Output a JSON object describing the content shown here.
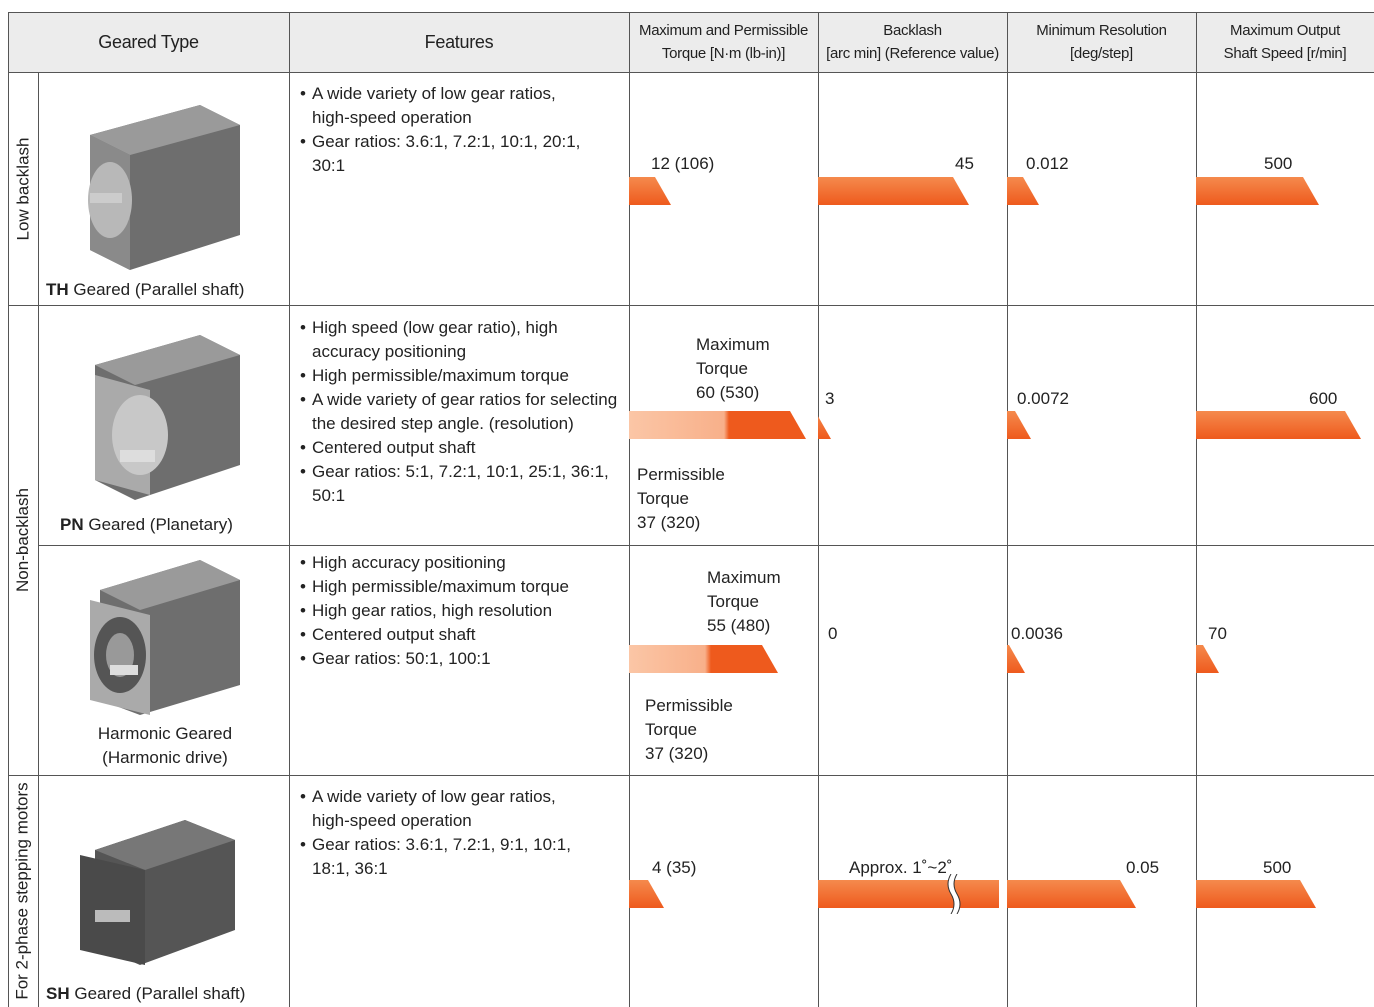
{
  "header": {
    "columns": [
      [
        "Geared Type"
      ],
      [
        "Features"
      ],
      [
        "Maximum and Permissible",
        "Torque [N·m (lb-in)]"
      ],
      [
        "Backlash",
        "[arc min] (Reference value)"
      ],
      [
        "Minimum Resolution",
        "[deg/step]"
      ],
      [
        "Maximum Output",
        "Shaft Speed [r/min]"
      ]
    ]
  },
  "groups": [
    "Low backlash",
    "Non-backlash",
    "For 2-phase stepping motors"
  ],
  "rows": [
    {
      "name_bold": "TH",
      "name": "Geared (Parallel shaft)",
      "features": [
        "A wide variety of low gear ratios, high-speed operation",
        "Gear ratios: 3.6:1, 7.2:1, 10:1, 20:1, 30:1"
      ],
      "torque": "12 (106)",
      "backlash": "45",
      "resolution": "0.012",
      "speed": "500"
    },
    {
      "name_bold": "PN",
      "name": "Geared (Planetary)",
      "features": [
        "High speed (low gear ratio), high accuracy positioning",
        "High permissible/maximum torque",
        "A wide variety of gear ratios for selecting the desired step angle. (resolution)",
        "Centered output shaft",
        "Gear ratios: 5:1, 7.2:1, 10:1, 25:1, 36:1, 50:1"
      ],
      "torque_max_label": "Maximum Torque",
      "torque_max": "60 (530)",
      "torque_perm_label": "Permissible Torque",
      "torque_perm": "37 (320)",
      "backlash": "3",
      "resolution": "0.0072",
      "speed": "600"
    },
    {
      "name": "Harmonic Geared (Harmonic drive)",
      "features": [
        "High accuracy positioning",
        "High permissible/maximum torque",
        "High gear ratios, high resolution",
        "Centered output shaft",
        "Gear ratios: 50:1, 100:1"
      ],
      "torque_max_label": "Maximum Torque",
      "torque_max": "55 (480)",
      "torque_perm_label": "Permissible Torque",
      "torque_perm": "37 (320)",
      "backlash": "0",
      "resolution": "0.0036",
      "speed": "70"
    },
    {
      "name_bold": "SH",
      "name": "Geared (Parallel shaft)",
      "features": [
        "A wide variety of low gear ratios, high-speed operation",
        "Gear ratios: 3.6:1, 7.2:1, 9:1, 10:1, 18:1, 36:1"
      ],
      "torque": "4 (35)",
      "backlash": "Approx. 1˚~2˚",
      "resolution": "0.05",
      "speed": "500"
    }
  ]
}
